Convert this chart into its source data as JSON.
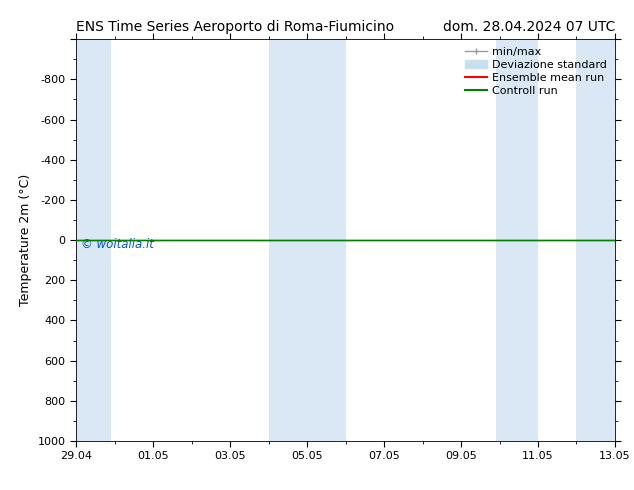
{
  "title_left": "ENS Time Series Aeroporto di Roma-Fiumicino",
  "title_right": "dom. 28.04.2024 07 UTC",
  "ylabel": "Temperature 2m (°C)",
  "ylim_top": -1000,
  "ylim_bottom": 1000,
  "yticks": [
    -800,
    -600,
    -400,
    -200,
    0,
    200,
    400,
    600,
    800,
    1000
  ],
  "xtick_labels": [
    "29.04",
    "01.05",
    "03.05",
    "05.05",
    "07.05",
    "09.05",
    "11.05",
    "13.05"
  ],
  "xtick_positions": [
    0,
    2,
    4,
    6,
    8,
    10,
    12,
    14
  ],
  "xlim": [
    0,
    14
  ],
  "background_color": "#ffffff",
  "plot_bg_color": "#ffffff",
  "shaded_regions": [
    [
      0.0,
      0.9
    ],
    [
      5.0,
      7.0
    ],
    [
      10.9,
      12.0
    ],
    [
      13.0,
      14.0
    ]
  ],
  "shaded_color": "#dae8f5",
  "hline_color_red": "#ff0000",
  "hline_color_green": "#008000",
  "watermark_text": "© woitalia.it",
  "watermark_color": "#0055cc",
  "legend_labels": [
    "min/max",
    "Deviazione standard",
    "Ensemble mean run",
    "Controll run"
  ],
  "legend_colors": [
    "#999999",
    "#c8dff0",
    "#ff0000",
    "#008000"
  ],
  "title_fontsize": 10,
  "axis_label_fontsize": 9,
  "tick_fontsize": 8,
  "legend_fontsize": 8
}
